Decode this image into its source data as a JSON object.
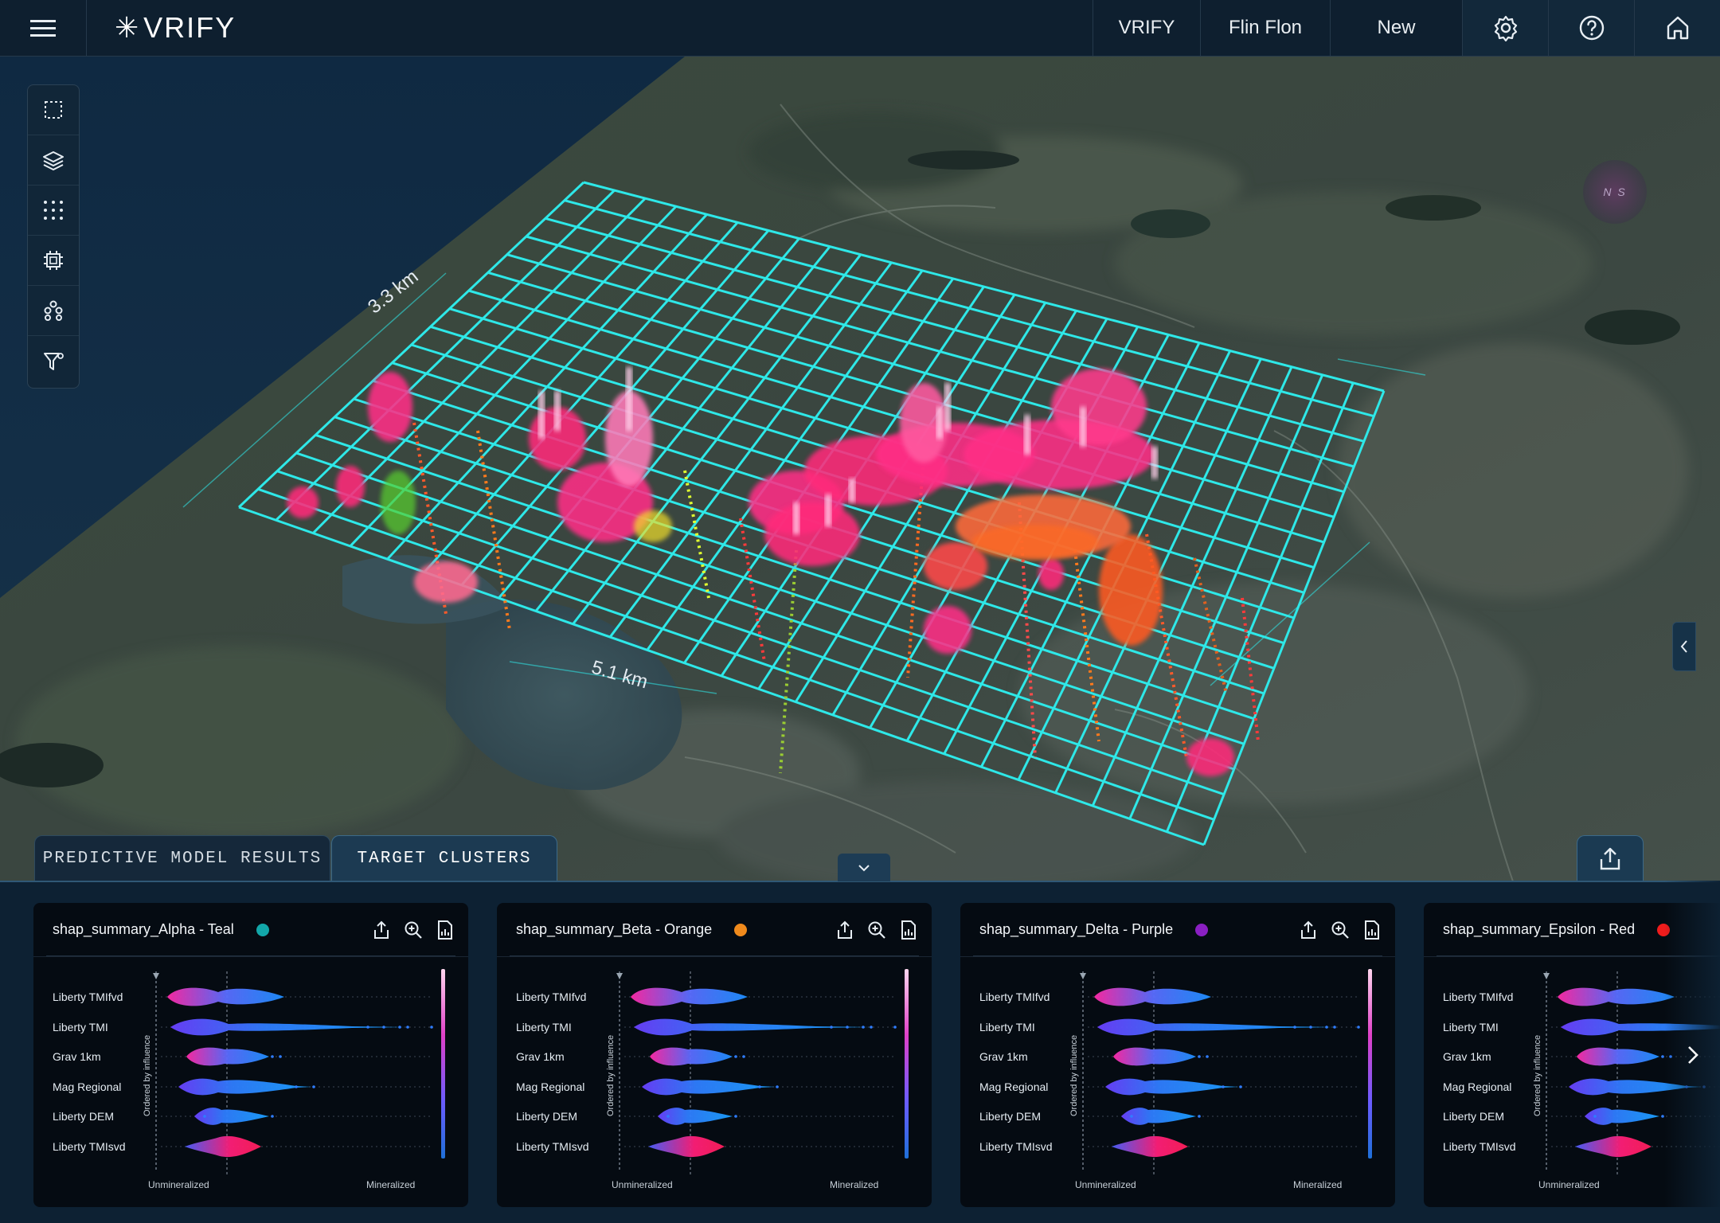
{
  "header": {
    "logo": "VRIFY",
    "links": [
      "VRIFY",
      "Flin Flon",
      "New"
    ]
  },
  "map": {
    "dim_width": "5.1 km",
    "dim_height": "3.3 km",
    "compass_label": "N S"
  },
  "tabs": {
    "items": [
      "PREDICTIVE MODEL RESULTS",
      "TARGET CLUSTERS"
    ],
    "active": "TARGET CLUSTERS"
  },
  "cards": [
    {
      "title": "shap_summary_Alpha - Teal",
      "dot_color": "#12a7a9"
    },
    {
      "title": "shap_summary_Beta - Orange",
      "dot_color": "#f08a1c"
    },
    {
      "title": "shap_summary_Delta - Purple",
      "dot_color": "#8a1fc2"
    },
    {
      "title": "shap_summary_Epsilon - Red",
      "dot_color": "#f01c1c"
    }
  ],
  "plot": {
    "features": [
      "Liberty TMIfvd",
      "Liberty TMI",
      "Grav 1km",
      "Mag Regional",
      "Liberty DEM",
      "Liberty TMIsvd"
    ],
    "y_axis_label": "Ordered by influence",
    "x_left_label": "Unmineralized",
    "x_right_label": "Mineralized"
  },
  "colors": {
    "accent": "#2ee8e8",
    "hotspot": "#ff2a7a",
    "panel_bg": "#0d2133"
  },
  "icons": {
    "left_tools": [
      "select-box-icon",
      "layers-icon",
      "grid-dots-icon",
      "chip-icon",
      "network-icon",
      "filter-icon"
    ],
    "top_right": [
      "gear-icon",
      "help-icon",
      "home-icon"
    ],
    "card_actions": [
      "export-icon",
      "zoom-in-icon",
      "report-icon"
    ]
  }
}
